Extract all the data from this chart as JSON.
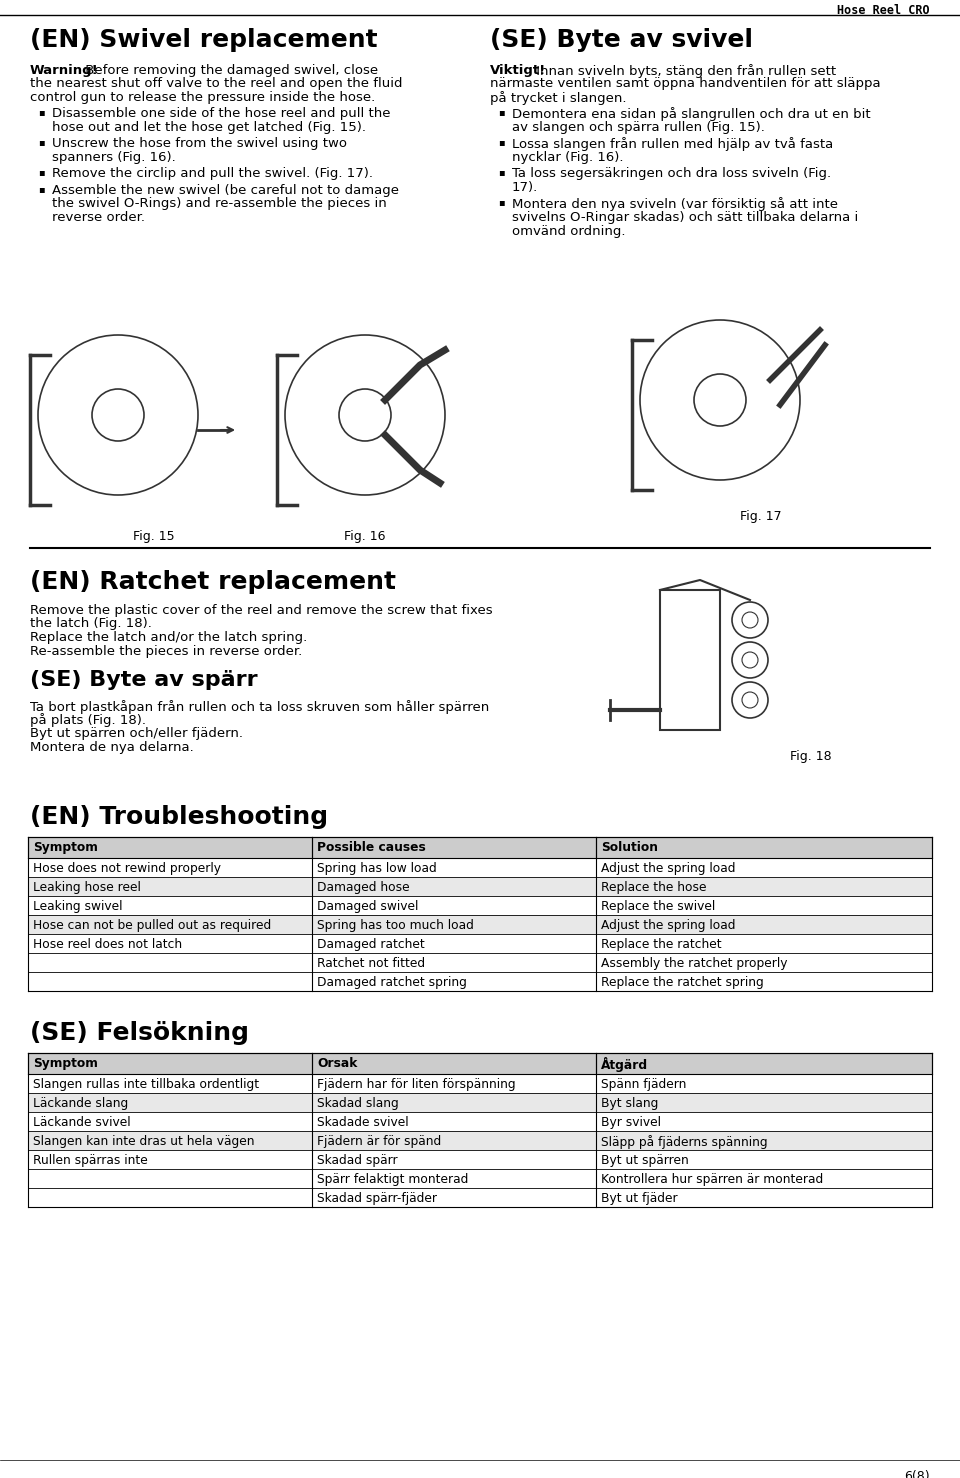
{
  "bg_color": "#ffffff",
  "page_title": "Hose Reel CRO",
  "sec1_en_title": "(EN) Swivel replacement",
  "sec1_en_warn_bold": "Warning!",
  "sec1_en_warn_rest_line1": " Before removing the damaged swivel, close",
  "sec1_en_warn_line2": "the nearest shut off valve to the reel and open the fluid",
  "sec1_en_warn_line3": "control gun to release the pressure inside the hose.",
  "sec1_en_bullets": [
    [
      "Disassemble one side of the hose reel and pull the",
      "hose out and let the hose get latched (Fig. 15)."
    ],
    [
      "Unscrew the hose from the swivel using two",
      "spanners (Fig. 16)."
    ],
    [
      "Remove the circlip and pull the swivel. (Fig. 17)."
    ],
    [
      "Assemble the new swivel (be careful not to damage",
      "the swivel O-Rings) and re-assemble the pieces in",
      "reverse order."
    ]
  ],
  "sec1_se_title": "(SE) Byte av svivel",
  "sec1_se_warn_bold": "Viktigt!",
  "sec1_se_warn_rest_line1": " Innan sviveln byts, stäng den från rullen sett",
  "sec1_se_warn_line2": "närmaste ventilen samt öppna handventilen för att släppa",
  "sec1_se_warn_line3": "på trycket i slangen.",
  "sec1_se_bullets": [
    [
      "Demontera ena sidan på slangrullen och dra ut en bit",
      "av slangen och spärra rullen (Fig. 15)."
    ],
    [
      "Lossa slangen från rullen med hjälp av två fasta",
      "nycklar (Fig. 16)."
    ],
    [
      "Ta loss segersäkringen och dra loss sviveln (Fig.",
      "17)."
    ],
    [
      "Montera den nya sviveln (var försiktig så att inte",
      "svivelns O-Ringar skadas) och sätt tillbaka delarna i",
      "omvänd ordning."
    ]
  ],
  "fig15_label": "Fig. 15",
  "fig16_label": "Fig. 16",
  "fig17_label": "Fig. 17",
  "fig18_label": "Fig. 18",
  "sec2_en_title": "(EN) Ratchet replacement",
  "sec2_en_lines": [
    "Remove the plastic cover of the reel and remove the screw that fixes",
    "the latch (Fig. 18).",
    "Replace the latch and/or the latch spring.",
    "Re-assemble the pieces in reverse order."
  ],
  "sec2_se_title": "(SE) Byte av spärr",
  "sec2_se_lines": [
    "Ta bort plastkåpan från rullen och ta loss skruven som håller spärren",
    "på plats (Fig. 18).",
    "Byt ut spärren och/eller fjädern.",
    "Montera de nya delarna."
  ],
  "sec3_en_title": "(EN) Troubleshooting",
  "ts_headers": [
    "Symptom",
    "Possible causes",
    "Solution"
  ],
  "ts_rows": [
    [
      "Hose does not rewind properly",
      "Spring has low load",
      "Adjust the spring load",
      "1"
    ],
    [
      "Leaking hose reel",
      "Damaged hose",
      "Replace the hose",
      "2"
    ],
    [
      "Leaking swivel",
      "Damaged swivel",
      "Replace the swivel",
      "1"
    ],
    [
      "Hose can not be pulled out as required",
      "Spring has too much load",
      "Adjust the spring load",
      "2"
    ],
    [
      "Hose reel does not latch",
      "Damaged ratchet",
      "Replace the ratchet",
      "1"
    ],
    [
      "",
      "Ratchet not fitted",
      "Assembly the ratchet properly",
      "1"
    ],
    [
      "",
      "Damaged ratchet spring",
      "Replace the ratchet spring",
      "1"
    ]
  ],
  "sec4_se_title": "(SE) Felsökning",
  "fe_headers": [
    "Symptom",
    "Orsak",
    "Åtgärd"
  ],
  "fe_rows": [
    [
      "Slangen rullas inte tillbaka ordentligt",
      "Fjädern har för liten förspänning",
      "Spänn fjädern",
      "1"
    ],
    [
      "Läckande slang",
      "Skadad slang",
      "Byt slang",
      "2"
    ],
    [
      "Läckande svivel",
      "Skadade svivel",
      "Byr svivel",
      "1"
    ],
    [
      "Slangen kan inte dras ut hela vägen",
      "Fjädern är för spänd",
      "Släpp på fjäderns spänning",
      "2"
    ],
    [
      "Rullen spärras inte",
      "Skadad spärr",
      "Byt ut spärren",
      "1"
    ],
    [
      "",
      "Spärr felaktigt monterad",
      "Kontrollera hur spärren är monterad",
      "1"
    ],
    [
      "",
      "Skadad spärr-fjäder",
      "Byt ut fjäder",
      "1"
    ]
  ],
  "page_footer": "6(8)"
}
